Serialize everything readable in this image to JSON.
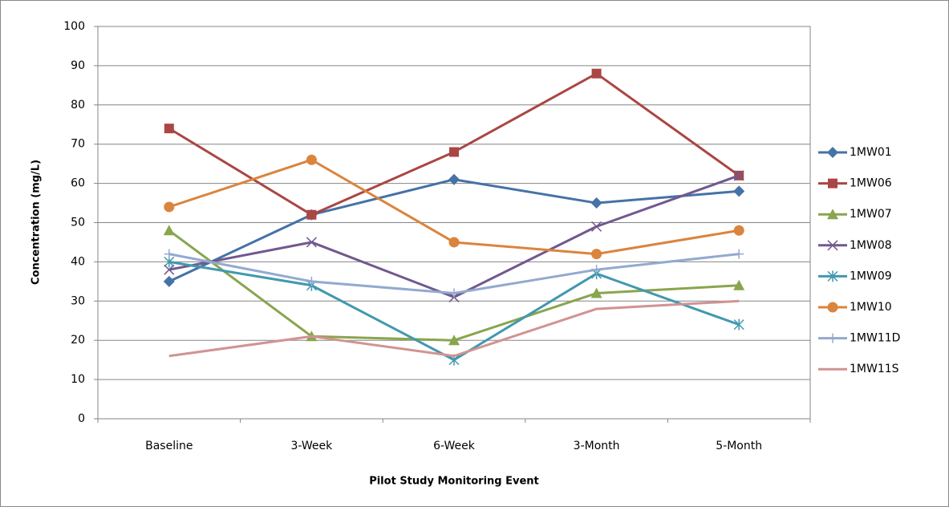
{
  "chart_data": {
    "type": "line",
    "x_label": "Pilot Study Monitoring Event",
    "y_label": "Concentration (mg/L)",
    "categories": [
      "Baseline",
      "3-Week",
      "6-Week",
      "3-Month",
      "5-Month"
    ],
    "series": [
      {
        "name": "1MW01",
        "color": "#4572a7",
        "marker": "diamond",
        "values": [
          35,
          52,
          61,
          55,
          58
        ]
      },
      {
        "name": "1MW06",
        "color": "#aa4643",
        "marker": "square",
        "values": [
          74,
          52,
          68,
          88,
          62
        ]
      },
      {
        "name": "1MW07",
        "color": "#89a54e",
        "marker": "triangle",
        "values": [
          48,
          21,
          20,
          32,
          34
        ]
      },
      {
        "name": "1MW08",
        "color": "#71588f",
        "marker": "x",
        "values": [
          38,
          45,
          31,
          49,
          62
        ]
      },
      {
        "name": "1MW09",
        "color": "#4198af",
        "marker": "star",
        "values": [
          40,
          34,
          15,
          37,
          24
        ]
      },
      {
        "name": "1MW10",
        "color": "#db843d",
        "marker": "circle",
        "values": [
          54,
          66,
          45,
          42,
          48
        ]
      },
      {
        "name": "1MW11D",
        "color": "#93a9cf",
        "marker": "plus",
        "values": [
          42,
          35,
          32,
          38,
          42
        ]
      },
      {
        "name": "1MW11S",
        "color": "#d19392",
        "marker": "none",
        "values": [
          16,
          21,
          16,
          28,
          30
        ]
      }
    ],
    "ylim": [
      0,
      100
    ],
    "yticks": [
      0,
      10,
      20,
      30,
      40,
      50,
      60,
      70,
      80,
      90,
      100
    ],
    "grid": true,
    "legend": "right"
  }
}
